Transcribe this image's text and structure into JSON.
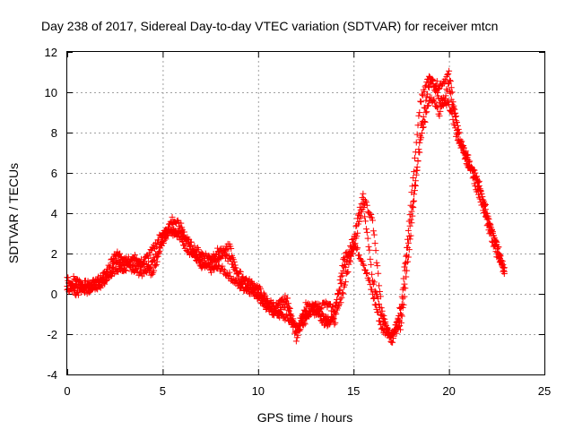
{
  "chart_data": {
    "type": "scatter",
    "title": "Day 238 of 2017, Sidereal Day-to-day VTEC variation (SDTVAR) for receiver mtcn",
    "xlabel": "GPS time / hours",
    "ylabel": "SDTVAR / TECUs",
    "xlim": [
      0,
      25
    ],
    "ylim": [
      -4,
      12
    ],
    "x_ticks": [
      0,
      5,
      10,
      15,
      20,
      25
    ],
    "y_ticks": [
      -4,
      -2,
      0,
      2,
      4,
      6,
      8,
      10,
      12
    ],
    "x_tick_labels": [
      "0",
      "5",
      "10",
      "15",
      "20",
      "25"
    ],
    "y_tick_labels": [
      "-4",
      "-2",
      "0",
      "2",
      "4",
      "6",
      "8",
      "10",
      "12"
    ],
    "grid": true,
    "marker": "+",
    "colors": {
      "series": "#ff0000",
      "grid": "#a0a0a0",
      "axis": "#000000"
    },
    "series": [
      {
        "name": "SDTVAR",
        "strands": [
          {
            "x": [
              0.0,
              0.5,
              1.0,
              1.5,
              2.0,
              2.5,
              3.0,
              3.5,
              4.0,
              4.5,
              5.0,
              5.5,
              6.0,
              6.5,
              7.0,
              7.5,
              8.0,
              8.5,
              9.0,
              9.5,
              10.0,
              10.5,
              11.0,
              11.5,
              12.0,
              12.5,
              13.0,
              13.5,
              14.0,
              14.5,
              15.0,
              15.5,
              16.0,
              16.5,
              17.0,
              17.5,
              18.0,
              18.5,
              19.0,
              19.5,
              20.0,
              20.5,
              21.0,
              21.5,
              22.0,
              22.5,
              22.9
            ],
            "y": [
              0.2,
              0.4,
              0.5,
              0.3,
              0.6,
              1.6,
              1.5,
              1.2,
              1.0,
              1.6,
              2.6,
              3.4,
              2.6,
              2.0,
              1.6,
              1.2,
              1.3,
              0.9,
              0.4,
              0.2,
              -0.1,
              -0.8,
              -1.0,
              -1.2,
              -1.6,
              -1.0,
              -0.9,
              -1.1,
              -1.4,
              0.3,
              2.5,
              1.6,
              0.0,
              -1.8,
              -2.0,
              -1.6,
              3.0,
              8.0,
              10.6,
              10.3,
              10.9,
              8.0,
              6.5,
              5.5,
              4.0,
              2.5,
              1.0
            ]
          },
          {
            "x": [
              0.0,
              0.5,
              1.0,
              1.5,
              2.0,
              2.5,
              3.0,
              3.5,
              4.0,
              4.5,
              5.0,
              5.5,
              6.0,
              6.5,
              7.0,
              7.5,
              8.0,
              8.5,
              9.0,
              9.5,
              10.0,
              10.5,
              11.0,
              11.5,
              12.0,
              12.5,
              13.0,
              13.5,
              14.0,
              14.5,
              15.0,
              15.5,
              16.0,
              16.5,
              17.0,
              17.5,
              18.0,
              18.5,
              19.0,
              19.5,
              20.0,
              20.5,
              21.0,
              21.5,
              22.0,
              22.5,
              22.9
            ],
            "y": [
              0.7,
              0.0,
              0.3,
              0.6,
              1.0,
              2.0,
              1.8,
              1.5,
              1.6,
              2.2,
              3.1,
              3.0,
              3.0,
              2.4,
              2.0,
              1.8,
              2.2,
              1.7,
              1.0,
              0.6,
              0.3,
              -0.4,
              -0.6,
              -0.2,
              -2.2,
              -0.6,
              -0.7,
              -0.5,
              -0.8,
              1.2,
              2.8,
              4.8,
              3.6,
              -1.0,
              -2.4,
              -0.5,
              4.5,
              9.5,
              10.9,
              9.6,
              9.4,
              7.5,
              6.8,
              5.0,
              3.5,
              2.0,
              1.3
            ]
          },
          {
            "x": [
              0.0,
              0.5,
              1.0,
              1.5,
              2.0,
              2.5,
              3.0,
              3.5,
              4.0,
              4.5,
              5.0,
              5.5,
              6.0,
              6.5,
              7.0,
              7.5,
              8.0,
              8.5,
              9.0,
              9.5,
              10.0,
              10.5,
              11.0,
              11.5,
              12.0,
              12.5,
              13.0,
              13.5,
              14.0,
              14.5,
              15.0,
              15.5,
              16.0,
              16.5,
              17.0,
              17.5,
              18.0,
              18.5,
              19.0,
              19.5,
              20.0,
              20.5,
              21.0,
              21.5,
              22.0,
              22.5,
              22.9
            ],
            "y": [
              0.5,
              0.8,
              0.1,
              0.5,
              0.8,
              1.2,
              1.2,
              1.8,
              1.4,
              1.0,
              2.8,
              3.7,
              3.3,
              2.2,
              1.4,
              1.5,
              1.8,
              2.4,
              0.7,
              0.4,
              0.0,
              -0.5,
              -0.9,
              -0.4,
              -1.9,
              -1.3,
              -0.5,
              -1.6,
              -1.1,
              1.8,
              2.2,
              4.5,
              0.8,
              -1.2,
              -2.2,
              -1.0,
              3.8,
              7.5,
              9.8,
              9.0,
              10.4,
              7.8,
              6.3,
              5.8,
              3.8,
              2.5,
              1.1
            ]
          }
        ]
      }
    ]
  }
}
